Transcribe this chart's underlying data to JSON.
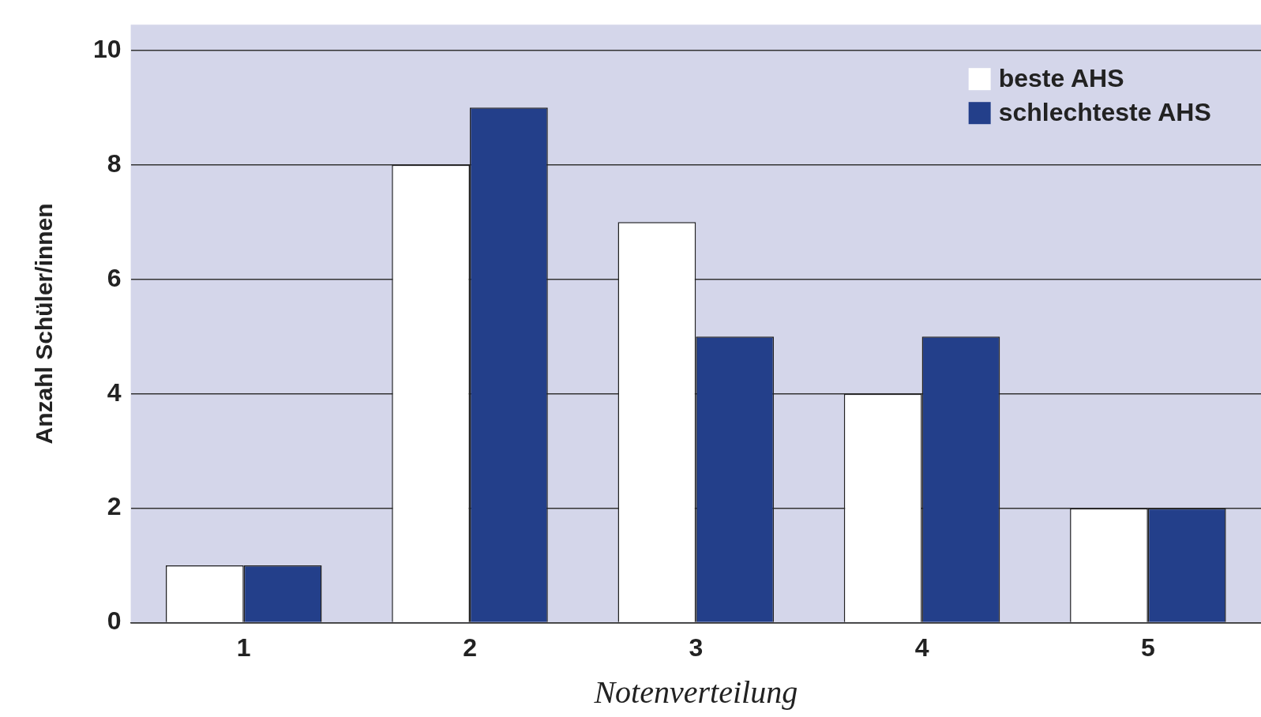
{
  "chart_data": {
    "type": "bar",
    "xlabel": "Notenverteilung",
    "ylabel": "Anzahl Schüler/innen",
    "categories": [
      "1",
      "2",
      "3",
      "4",
      "5"
    ],
    "series": [
      {
        "name": "beste AHS",
        "color": "#ffffff",
        "values": [
          1,
          8,
          7,
          4,
          2
        ]
      },
      {
        "name": "schlechteste AHS",
        "color": "#233f8a",
        "values": [
          1,
          9,
          5,
          5,
          2
        ]
      }
    ],
    "ylim": [
      0,
      10.45
    ],
    "yticks": [
      0,
      2,
      4,
      6,
      8,
      10
    ],
    "grid": "y",
    "legend": "top right"
  }
}
